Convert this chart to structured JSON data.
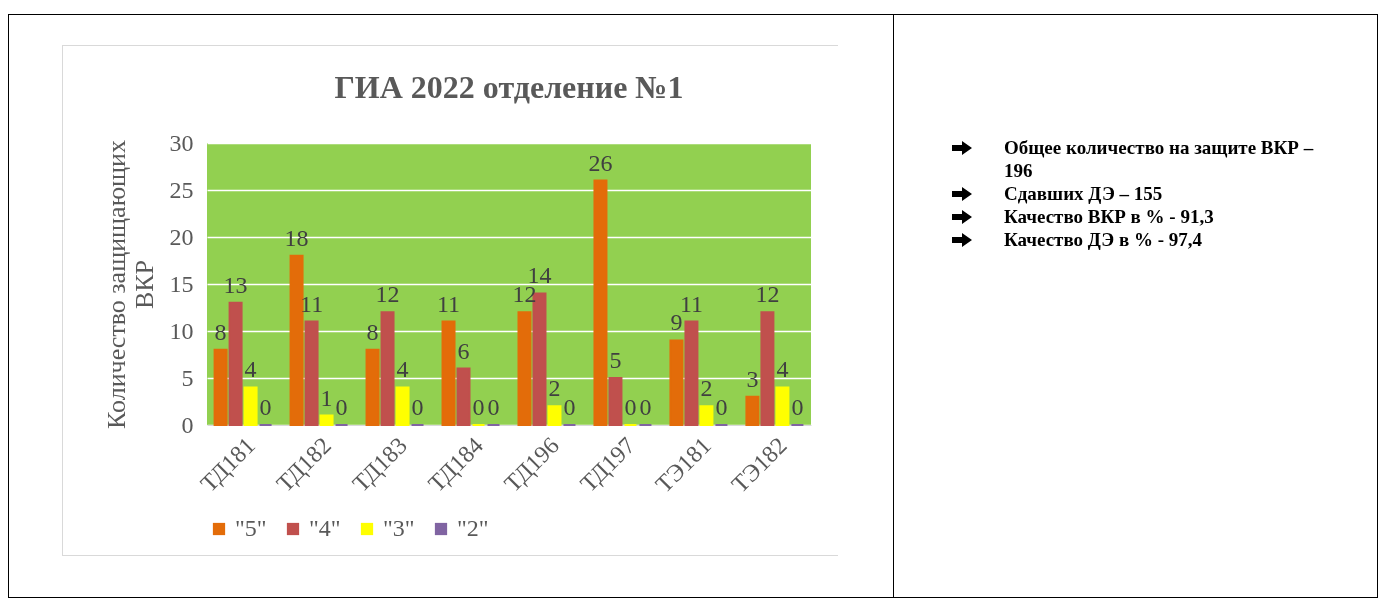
{
  "chart_data": [
    {
      "type": "bar",
      "title": "ГИА 2022  отделение №1",
      "ylabel": "Количество защищающих ВКР",
      "categories": [
        "ТД181",
        "ТД182",
        "ТД183",
        "ТД184",
        "ТД196",
        "ТД197",
        "ТЭ181",
        "ТЭ182"
      ],
      "series": [
        {
          "name": "\"5\"",
          "color": "#e36c09",
          "values": [
            8,
            18,
            8,
            11,
            12,
            26,
            9,
            3
          ]
        },
        {
          "name": "\"4\"",
          "color": "#c0504d",
          "values": [
            13,
            11,
            12,
            6,
            14,
            5,
            11,
            12
          ]
        },
        {
          "name": "\"3\"",
          "color": "#ffff00",
          "values": [
            4,
            1,
            4,
            0,
            2,
            0,
            2,
            4
          ]
        },
        {
          "name": "\"2\"",
          "color": "#8064a2",
          "values": [
            0,
            0,
            0,
            0,
            0,
            0,
            0,
            0
          ]
        }
      ],
      "ylim": [
        0,
        30
      ],
      "yticks": [
        0,
        5,
        10,
        15,
        20,
        25,
        30
      ],
      "grid": "y",
      "legend": "bottom",
      "data_labels": true
    },
    {
      "type": "other",
      "annotations": [
        "Общее количество на защите ВКР – 196",
        "Сдавших ДЭ – 155",
        "Качество ВКР в % - 91,3",
        "Качество ДЭ в % - 97,4"
      ]
    }
  ]
}
